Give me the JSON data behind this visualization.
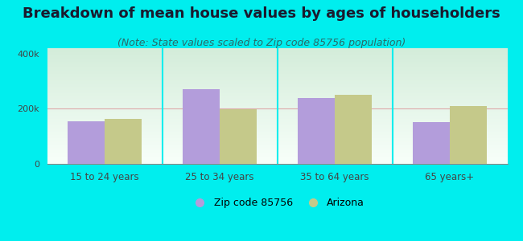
{
  "title": "Breakdown of mean house values by ages of householders",
  "subtitle": "(Note: State values scaled to Zip code 85756 population)",
  "categories": [
    "15 to 24 years",
    "25 to 34 years",
    "35 to 64 years",
    "65 years+"
  ],
  "zip_values": [
    155000,
    270000,
    240000,
    152000
  ],
  "az_values": [
    162000,
    197000,
    252000,
    210000
  ],
  "zip_color": "#b39ddb",
  "az_color": "#c5c98a",
  "background_color": "#00eeee",
  "ylim": [
    0,
    420000
  ],
  "yticks": [
    0,
    200000,
    400000
  ],
  "ytick_labels": [
    "0",
    "200k",
    "400k"
  ],
  "legend_zip_label": "Zip code 85756",
  "legend_az_label": "Arizona",
  "title_fontsize": 13,
  "subtitle_fontsize": 9,
  "bar_width": 0.32
}
